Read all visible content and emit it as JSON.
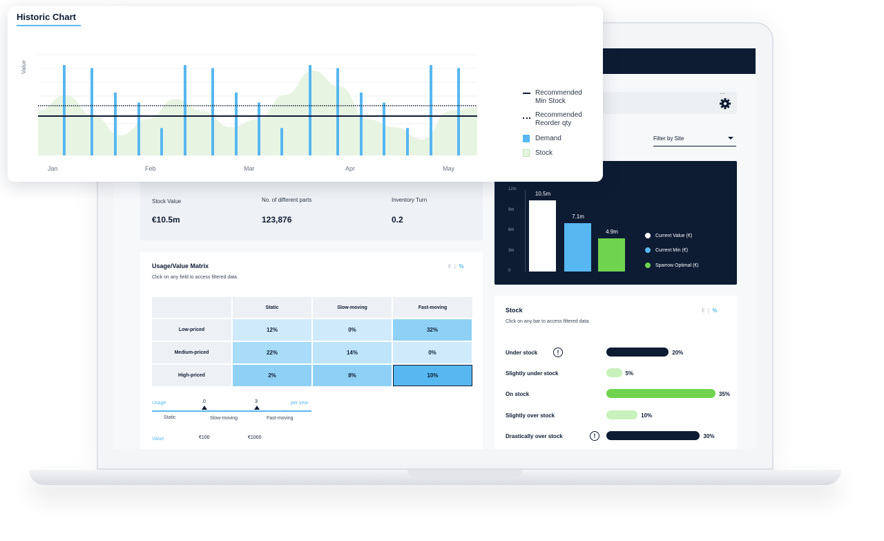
{
  "historic_chart": {
    "title": "Historic Chart",
    "ylabel": "Value",
    "months": [
      "Jan",
      "Feb",
      "Mar",
      "Apr",
      "May"
    ],
    "legend": {
      "min_stock": "Recommended Min Stock",
      "min_stock_l1": "Recommended",
      "min_stock_l2": "Min Stock",
      "reorder_l1": "Recommended",
      "reorder_l2": "Reorder qty",
      "demand": "Demand",
      "stock": "Stock"
    },
    "colors": {
      "demand": "#57b7f0",
      "stock": "#e8f4e2",
      "lines": "#0d1b33"
    }
  },
  "chart_data": {
    "type": "bar",
    "title": "Historic Chart",
    "ylabel": "Value",
    "x_ticks": [
      "Jan",
      "Feb",
      "Mar",
      "Apr",
      "May"
    ],
    "demand": [
      0.89,
      0.86,
      0.62,
      0.52,
      0.27,
      0.89,
      0.86,
      0.62,
      0.52,
      0.27,
      0.89,
      0.86,
      0.62,
      0.52,
      0.27,
      0.89,
      0.86
    ],
    "recommended_min_stock": 0.38,
    "recommended_reorder_qty": 0.48,
    "stock_profile": [
      0.55,
      0.75,
      0.5,
      0.25,
      0.45,
      0.7,
      0.55,
      0.35,
      0.45,
      0.75,
      1.05,
      0.85,
      0.45,
      0.35,
      0.2,
      0.55,
      0.6
    ]
  },
  "dashboard": {
    "filter_site": "Filter by Site",
    "more_dots": "...",
    "value_chart": {
      "y_ticks": [
        "12m",
        "9m",
        "6m",
        "3m",
        "0"
      ],
      "bars": [
        {
          "label": "10.5m",
          "value": 10.5,
          "color": "#ffffff"
        },
        {
          "label": "7.1m",
          "value": 7.1,
          "color": "#57b7f0"
        },
        {
          "label": "4.9m",
          "value": 4.9,
          "color": "#6fd34f"
        }
      ],
      "legend": [
        {
          "label": "Current Value  (€)",
          "color": "#ffffff"
        },
        {
          "label": "Current Min  (€)",
          "color": "#57b7f0"
        },
        {
          "label": "Sparrow Optimal  (€)",
          "color": "#6fd34f"
        }
      ]
    },
    "kpis": [
      {
        "label": "Stock Value",
        "value": "€10.5m"
      },
      {
        "label": "No. of different parts",
        "value": "123,876"
      },
      {
        "label": "Inventory Turn",
        "value": "0.2"
      }
    ],
    "matrix": {
      "title": "Usage/Value Matrix",
      "subtitle": "Click on any field to access filtered data.",
      "unit_euro": "€",
      "unit_sep": "|",
      "unit_pct": "%",
      "columns": [
        "Static",
        "Slow-moving",
        "Fast-moving"
      ],
      "rows": [
        {
          "label": "Low-priced",
          "cells": [
            "12%",
            "0%",
            "32%"
          ]
        },
        {
          "label": "Medium-priced",
          "cells": [
            "22%",
            "14%",
            "0%"
          ]
        },
        {
          "label": "High-priced",
          "cells": [
            "2%",
            "8%",
            "10%"
          ]
        }
      ],
      "usage_label": "Usage",
      "usage_ticks": [
        "0",
        "3"
      ],
      "per_year": "per year",
      "usage_classes": [
        "Static",
        "Slow-moving",
        "Fast-moving"
      ],
      "value_label": "Value",
      "value_ticks": [
        "€100",
        "€1000"
      ]
    },
    "stock": {
      "title": "Stock",
      "subtitle": "Click on any bar to access filtered data.",
      "unit_euro": "€",
      "unit_sep": "|",
      "unit_pct": "%",
      "items": [
        {
          "label": "Under stock",
          "pct": "20%",
          "value": 20,
          "color": "#0d1b33",
          "warning": true
        },
        {
          "label": "Slightly under stock",
          "pct": "5%",
          "value": 5,
          "color": "#c9f1bb",
          "warning": false
        },
        {
          "label": "On stock",
          "pct": "35%",
          "value": 35,
          "color": "#6fd34f",
          "warning": false
        },
        {
          "label": "Slightly over stock",
          "pct": "10%",
          "value": 10,
          "color": "#c9f1bb",
          "warning": false
        },
        {
          "label": "Drastically over stock",
          "pct": "30%",
          "value": 30,
          "color": "#0d1b33",
          "warning": true
        }
      ],
      "warn_glyph": "!"
    }
  }
}
